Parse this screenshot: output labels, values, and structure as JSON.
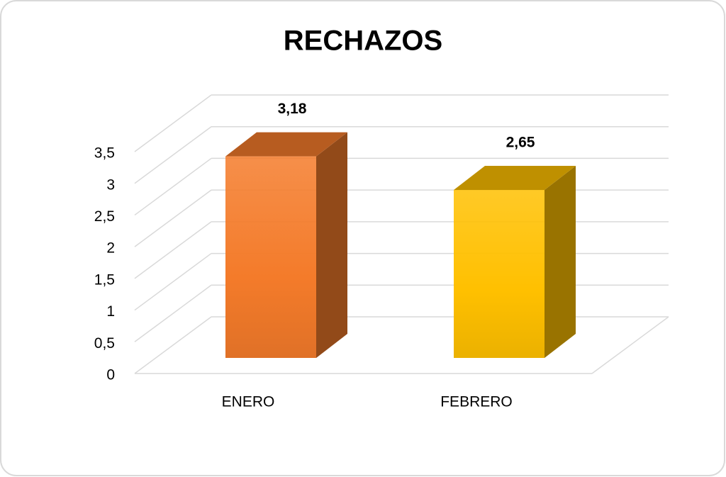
{
  "chart_data": {
    "type": "bar3d",
    "title": "RECHAZOS",
    "categories": [
      "ENERO",
      "FEBRERO"
    ],
    "values": [
      3.18,
      2.65
    ],
    "value_labels": [
      "3,18",
      "2,65"
    ],
    "colors": [
      "#f47b2a",
      "#ffc000"
    ],
    "ylim": [
      0,
      3.5
    ],
    "yticks": [
      0,
      {
        "value": 0.5,
        "label": "0,5"
      },
      1,
      {
        "value": 1.5,
        "label": "1,5"
      },
      2,
      {
        "value": 2.5,
        "label": "2,5"
      },
      3,
      {
        "value": 3.5,
        "label": "3,5"
      }
    ],
    "grid": true
  }
}
